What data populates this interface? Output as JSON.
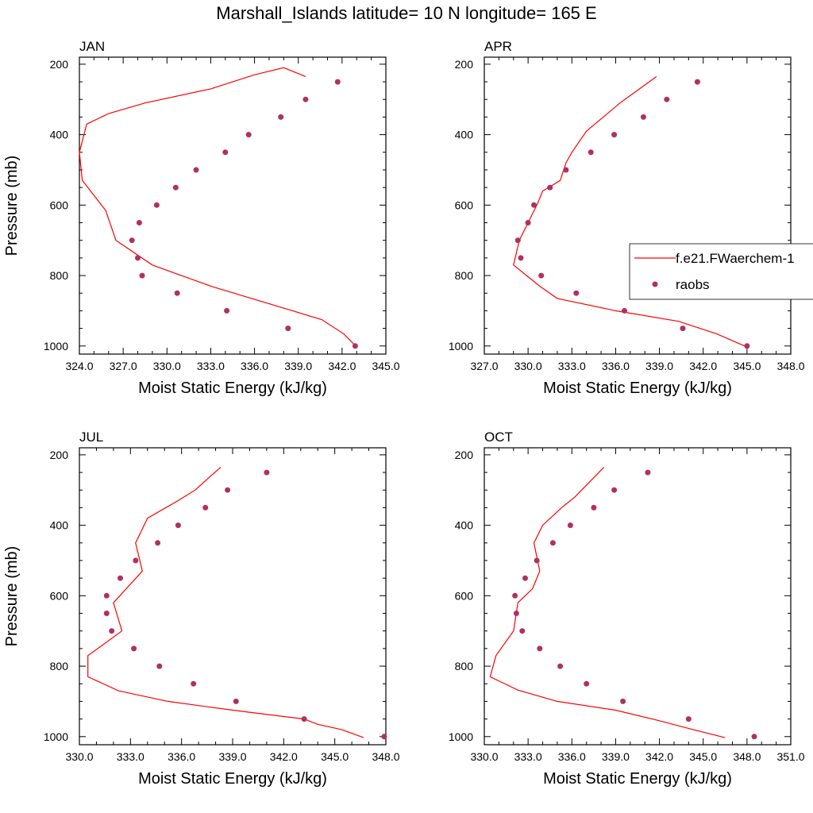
{
  "title": "Marshall_Islands  latitude= 10 N longitude= 165 E",
  "colors": {
    "model": "#ff0000",
    "obs": "#b03060",
    "axis": "#000000"
  },
  "legend": {
    "placement": "right of APR panel",
    "model_label": "f.e21.FWaerchem-1",
    "obs_label": "raobs"
  },
  "chart_data": [
    {
      "type": "line",
      "panel": "JAN",
      "title": "JAN",
      "xlabel": "Moist Static Energy (kJ/kg)",
      "ylabel": "Pressure (mb)",
      "xlim": [
        324,
        345
      ],
      "ylim": [
        1000,
        200
      ],
      "y_reversed": true,
      "xticks": [
        "324.0",
        "327.0",
        "330.0",
        "333.0",
        "336.0",
        "339.0",
        "342.0",
        "345.0"
      ],
      "yticks": [
        "200",
        "400",
        "600",
        "800",
        "1000"
      ],
      "series": [
        {
          "name": "f.e21.FWaerchem-1",
          "kind": "line",
          "x": [
            343.0,
            342.1,
            340.6,
            337.0,
            333.0,
            329.0,
            326.5,
            325.8,
            324.2,
            324.0,
            324.5,
            326.0,
            328.5,
            333.0,
            336.0,
            338.0,
            339.5
          ],
          "y": [
            1003,
            965,
            925,
            880,
            830,
            770,
            700,
            615,
            530,
            450,
            370,
            340,
            310,
            270,
            230,
            210,
            235
          ]
        },
        {
          "name": "raobs",
          "kind": "scatter",
          "x": [
            342.9,
            338.3,
            334.1,
            330.7,
            328.3,
            328.0,
            327.6,
            328.1,
            329.3,
            330.6,
            332.0,
            334.0,
            335.6,
            337.8,
            339.5,
            341.7
          ],
          "y": [
            1000,
            950,
            900,
            850,
            800,
            750,
            700,
            650,
            600,
            550,
            500,
            450,
            400,
            350,
            300,
            250
          ]
        }
      ]
    },
    {
      "type": "line",
      "panel": "APR",
      "title": "APR",
      "xlabel": "Moist Static Energy (kJ/kg)",
      "ylabel": "",
      "xlim": [
        327,
        348
      ],
      "ylim": [
        1000,
        200
      ],
      "y_reversed": true,
      "xticks": [
        "327.0",
        "330.0",
        "333.0",
        "336.0",
        "339.0",
        "342.0",
        "345.0",
        "348.0"
      ],
      "yticks": [
        "200",
        "400",
        "600",
        "800",
        "1000"
      ],
      "series": [
        {
          "name": "f.e21.FWaerchem-1",
          "kind": "line",
          "x": [
            345.0,
            342.9,
            340.3,
            336.0,
            332.0,
            330.8,
            329.9,
            329.0,
            329.4,
            330.0,
            330.6,
            331.0,
            332.2,
            332.6,
            333.0,
            334.0,
            336.3,
            338.8
          ],
          "y": [
            1003,
            965,
            930,
            900,
            865,
            830,
            800,
            770,
            700,
            650,
            600,
            560,
            530,
            480,
            450,
            390,
            310,
            235
          ]
        },
        {
          "name": "raobs",
          "kind": "scatter",
          "x": [
            345.0,
            340.6,
            336.6,
            333.3,
            330.9,
            329.5,
            329.3,
            330.0,
            330.4,
            331.5,
            332.6,
            334.3,
            335.9,
            337.9,
            339.5,
            341.6
          ],
          "y": [
            1000,
            950,
            900,
            850,
            800,
            750,
            700,
            650,
            600,
            550,
            500,
            450,
            400,
            350,
            300,
            250
          ]
        }
      ]
    },
    {
      "type": "line",
      "panel": "JUL",
      "title": "JUL",
      "xlabel": "Moist Static Energy (kJ/kg)",
      "ylabel": "Pressure (mb)",
      "xlim": [
        330,
        348
      ],
      "ylim": [
        1000,
        200
      ],
      "y_reversed": true,
      "xticks": [
        "330.0",
        "333.0",
        "336.0",
        "339.0",
        "342.0",
        "345.0",
        "348.0"
      ],
      "yticks": [
        "200",
        "400",
        "600",
        "800",
        "1000"
      ],
      "series": [
        {
          "name": "f.e21.FWaerchem-1",
          "kind": "line",
          "x": [
            346.7,
            345.4,
            344.0,
            343.2,
            339.0,
            335.2,
            332.3,
            330.5,
            330.5,
            332.5,
            332.0,
            333.7,
            333.3,
            334.0,
            335.8,
            336.8,
            338.3
          ],
          "y": [
            1003,
            980,
            965,
            950,
            925,
            900,
            870,
            830,
            770,
            700,
            620,
            530,
            450,
            380,
            330,
            300,
            235
          ]
        },
        {
          "name": "raobs",
          "kind": "scatter",
          "x": [
            347.9,
            343.2,
            339.2,
            336.7,
            334.7,
            333.2,
            331.9,
            331.6,
            331.6,
            332.4,
            333.3,
            334.6,
            335.8,
            337.4,
            338.7,
            341.0
          ],
          "y": [
            1000,
            950,
            900,
            850,
            800,
            750,
            700,
            650,
            600,
            550,
            500,
            450,
            400,
            350,
            300,
            250
          ]
        }
      ]
    },
    {
      "type": "line",
      "panel": "OCT",
      "title": "OCT",
      "xlabel": "Moist Static Energy (kJ/kg)",
      "ylabel": "",
      "xlim": [
        330,
        351
      ],
      "ylim": [
        1000,
        200
      ],
      "y_reversed": true,
      "xticks": [
        "330.0",
        "333.0",
        "336.0",
        "339.0",
        "342.0",
        "345.0",
        "348.0",
        "351.0"
      ],
      "yticks": [
        "200",
        "400",
        "600",
        "800",
        "1000"
      ],
      "series": [
        {
          "name": "f.e21.FWaerchem-1",
          "kind": "line",
          "x": [
            346.5,
            344.3,
            342.0,
            339.0,
            335.0,
            332.3,
            330.4,
            330.8,
            332.0,
            332.3,
            333.3,
            333.8,
            333.4,
            334.0,
            335.3,
            336.2,
            338.2
          ],
          "y": [
            1003,
            980,
            955,
            925,
            900,
            868,
            830,
            770,
            700,
            620,
            580,
            530,
            450,
            400,
            350,
            320,
            235
          ]
        },
        {
          "name": "raobs",
          "kind": "scatter",
          "x": [
            348.5,
            344.0,
            339.5,
            337.0,
            335.2,
            333.8,
            332.6,
            332.2,
            332.1,
            332.8,
            333.6,
            334.7,
            335.9,
            337.5,
            338.9,
            341.2
          ],
          "y": [
            1000,
            950,
            900,
            850,
            800,
            750,
            700,
            650,
            600,
            550,
            500,
            450,
            400,
            350,
            300,
            250
          ]
        }
      ]
    }
  ]
}
